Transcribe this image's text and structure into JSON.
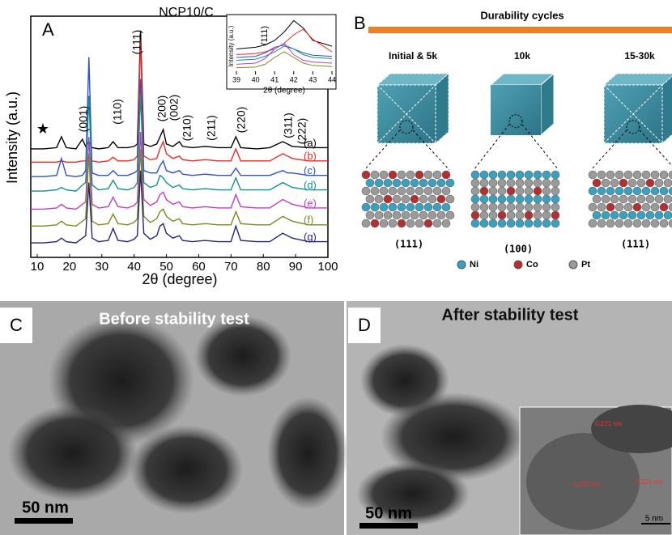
{
  "chart_data": [
    {
      "type": "line",
      "panel": "A",
      "title": "NCP10/C",
      "xlabel": "2θ (degree)",
      "ylabel": "Intensity (a.u.)",
      "xlim": [
        8,
        100
      ],
      "xticks": [
        10,
        20,
        30,
        40,
        50,
        60,
        70,
        80,
        90,
        100
      ],
      "ylim": [
        0,
        100
      ],
      "x": [
        8,
        12,
        16,
        17.5,
        19,
        22,
        24,
        25,
        26,
        27,
        29,
        32,
        33.5,
        35,
        38,
        40,
        41,
        42,
        43,
        45,
        47,
        48,
        49,
        50,
        52,
        54,
        55,
        58,
        62,
        66,
        70,
        71.5,
        73,
        78,
        82,
        86,
        87.5,
        89,
        94,
        100
      ],
      "annotations": [
        "★",
        "(001)",
        "(110)",
        "(111)",
        "(200)",
        "(002)",
        "(210)",
        "(211)",
        "(220)",
        "(311)",
        "(222)"
      ],
      "series": [
        {
          "name": "(a)",
          "color": "#000000",
          "values": [
            45,
            45,
            45.5,
            50,
            45.5,
            45,
            49,
            46,
            48,
            45.5,
            45,
            45.5,
            48,
            45.5,
            45.5,
            46,
            47,
            94,
            47,
            46,
            47,
            50,
            53,
            47,
            46,
            48,
            46,
            45.5,
            46,
            45.5,
            45.5,
            50,
            45.5,
            45,
            45.5,
            48,
            47,
            46,
            45.5,
            45.5
          ]
        },
        {
          "name": "(b)",
          "color": "#ee2a24",
          "values": [
            39.5,
            39.5,
            39.5,
            40,
            39.5,
            39.5,
            40,
            40,
            42,
            40,
            39.5,
            40,
            41.5,
            40,
            40,
            40.5,
            42,
            90,
            42,
            40.5,
            41,
            45,
            48,
            43,
            41,
            42,
            40.5,
            40,
            40.5,
            40,
            40,
            45,
            40,
            40,
            40,
            43,
            42,
            41,
            40,
            40
          ]
        },
        {
          "name": "(c)",
          "color": "#3050d0",
          "values": [
            33.5,
            33.5,
            34,
            41,
            34,
            33.5,
            34,
            36,
            83,
            35,
            34,
            34,
            36,
            34,
            34,
            35,
            36,
            74,
            36,
            35,
            35,
            38,
            40,
            36,
            35,
            36,
            34.5,
            34,
            34.5,
            34,
            34,
            37,
            34,
            34,
            34,
            36,
            35,
            35,
            34,
            34
          ]
        },
        {
          "name": "(d)",
          "color": "#13918c",
          "values": [
            27.5,
            27.5,
            28,
            29,
            28,
            27.5,
            30,
            31,
            67,
            30,
            28,
            28.5,
            32,
            28.5,
            28,
            29,
            31,
            68,
            31,
            29,
            30,
            34,
            33,
            31,
            29,
            30,
            28.5,
            28,
            28.5,
            28,
            28,
            33,
            28,
            28,
            28,
            31,
            30,
            29,
            28,
            28
          ]
        },
        {
          "name": "(e)",
          "color": "#c23cc0",
          "values": [
            20,
            20,
            20.5,
            22,
            20.5,
            20,
            22,
            23,
            50,
            22,
            20.5,
            21,
            25,
            21,
            20.5,
            21.5,
            23,
            52,
            24,
            21.5,
            23,
            26,
            27,
            24,
            22,
            23,
            21,
            20.5,
            21,
            20.5,
            20.5,
            26,
            21,
            20.5,
            20.5,
            24,
            23,
            22,
            20.5,
            20.5
          ]
        },
        {
          "name": "(f)",
          "color": "#7d8a22",
          "values": [
            13,
            13,
            13.5,
            15,
            13.5,
            13,
            15,
            16,
            43,
            15,
            13.5,
            14,
            18,
            14,
            13.5,
            14.5,
            16,
            45,
            17,
            14.5,
            16,
            19,
            20,
            17,
            15,
            16,
            14,
            13.5,
            14,
            13.5,
            13.5,
            19,
            14,
            13.5,
            13.5,
            17,
            16,
            15,
            13.5,
            13.5
          ]
        },
        {
          "name": "(g)",
          "color": "#25257a",
          "values": [
            6,
            6,
            6.5,
            8,
            6.5,
            6,
            8,
            9,
            31,
            8,
            6.5,
            7,
            12,
            7,
            6.5,
            7.5,
            9,
            36,
            10,
            7.5,
            9,
            13,
            14,
            10,
            8,
            9,
            7,
            6.5,
            7,
            6.5,
            6.5,
            13,
            7,
            6.5,
            6.5,
            10,
            9,
            8,
            6.5,
            6.5
          ]
        }
      ]
    },
    {
      "type": "line",
      "xlabel": "2θ (degree)",
      "ylabel": "Intensity (a.u.)",
      "annotation": "(111)",
      "xlim": [
        39,
        44
      ],
      "xticks": [
        39,
        40,
        41,
        42,
        43,
        44
      ],
      "ylim": [
        0,
        100
      ],
      "x": [
        39,
        40,
        40.5,
        41,
        41.5,
        42,
        42.5,
        43,
        44
      ],
      "series": [
        {
          "color": "#000000",
          "values": [
            45,
            48,
            52,
            60,
            75,
            95,
            82,
            60,
            50
          ]
        },
        {
          "color": "#ee2a24",
          "values": [
            35,
            37,
            40,
            45,
            55,
            70,
            80,
            62,
            40
          ]
        },
        {
          "color": "#3050d0",
          "values": [
            30,
            32,
            38,
            48,
            52,
            45,
            38,
            34,
            32
          ]
        },
        {
          "color": "#13918c",
          "values": [
            25,
            27,
            32,
            40,
            50,
            45,
            35,
            30,
            28
          ]
        },
        {
          "color": "#c23cc0",
          "values": [
            18,
            20,
            28,
            45,
            55,
            35,
            25,
            22,
            20
          ]
        },
        {
          "color": "#7d8a22",
          "values": [
            12,
            13,
            18,
            30,
            40,
            30,
            20,
            16,
            14
          ]
        }
      ]
    }
  ],
  "panels": {
    "B": {
      "letter": "B",
      "header": "Durability cycles",
      "stages": [
        {
          "label": "Initial & 5k",
          "facet": "(111)"
        },
        {
          "label": "10k",
          "facet": "(100)"
        },
        {
          "label": "15-30k",
          "facet": "(111)"
        }
      ],
      "legend": [
        "Ni",
        "Co",
        "Pt"
      ]
    },
    "C": {
      "letter": "C",
      "caption": "Before stability test",
      "scale": "50 nm"
    },
    "D": {
      "letter": "D",
      "caption": "After stability test",
      "scale": "50 nm",
      "inset": {
        "measurements": [
          "0.221 nm",
          "0.221 nm",
          "0.221 nm"
        ],
        "scale": "5 nm"
      }
    }
  }
}
